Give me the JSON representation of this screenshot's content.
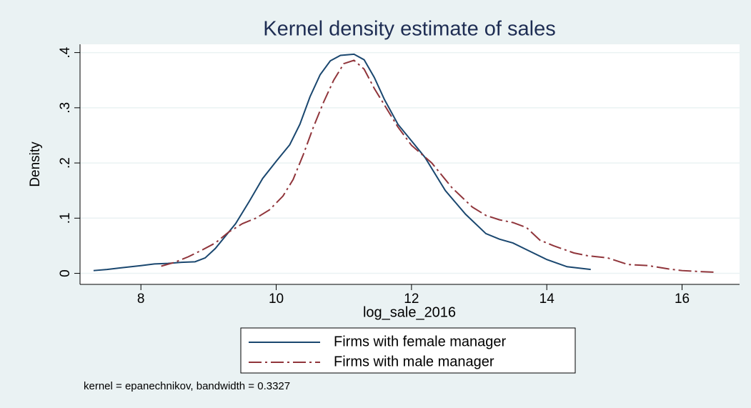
{
  "chart_data": {
    "type": "line",
    "title": "Kernel density estimate of sales",
    "x_label": "log_sale_2016",
    "y_label": "Density",
    "note": "kernel = epanechnikov, bandwidth = 0.3327",
    "xlim": [
      7.1,
      16.85
    ],
    "ylim": [
      -0.02,
      0.415
    ],
    "xticks": [
      8,
      10,
      12,
      14,
      16
    ],
    "yticks": [
      0,
      {
        "value": 0.1,
        "label": ".1"
      },
      {
        "value": 0.2,
        "label": ".2"
      },
      {
        "value": 0.3,
        "label": ".3"
      },
      {
        "value": 0.4,
        "label": ".4"
      }
    ],
    "grid": true,
    "legend": "bottom",
    "series": [
      {
        "name": "Firms with female manager",
        "color": "#1a476f",
        "style": "solid",
        "x": [
          7.3,
          7.5,
          7.7,
          8.0,
          8.2,
          8.4,
          8.6,
          8.8,
          8.95,
          9.1,
          9.4,
          9.6,
          9.8,
          10.0,
          10.2,
          10.35,
          10.5,
          10.65,
          10.8,
          10.95,
          11.15,
          11.3,
          11.45,
          11.6,
          11.8,
          12.0,
          12.2,
          12.5,
          12.8,
          13.1,
          13.3,
          13.5,
          13.7,
          14.0,
          14.3,
          14.65
        ],
        "values": [
          0.005,
          0.007,
          0.01,
          0.014,
          0.017,
          0.018,
          0.02,
          0.021,
          0.028,
          0.045,
          0.09,
          0.13,
          0.172,
          0.203,
          0.233,
          0.27,
          0.32,
          0.36,
          0.385,
          0.395,
          0.397,
          0.387,
          0.355,
          0.315,
          0.27,
          0.24,
          0.21,
          0.15,
          0.107,
          0.072,
          0.062,
          0.055,
          0.043,
          0.025,
          0.012,
          0.007
        ]
      },
      {
        "name": "Firms with male manager",
        "color": "#90353b",
        "style": "dashdot",
        "x": [
          8.3,
          8.5,
          8.7,
          8.9,
          9.1,
          9.3,
          9.5,
          9.7,
          9.9,
          10.1,
          10.25,
          10.4,
          10.55,
          10.7,
          10.85,
          11.0,
          11.15,
          11.3,
          11.45,
          11.6,
          11.8,
          12.0,
          12.3,
          12.6,
          12.9,
          13.1,
          13.3,
          13.5,
          13.7,
          13.9,
          14.1,
          14.4,
          14.6,
          14.9,
          15.2,
          15.5,
          15.8,
          16.0,
          16.3,
          16.5
        ],
        "values": [
          0.013,
          0.02,
          0.03,
          0.042,
          0.055,
          0.075,
          0.09,
          0.1,
          0.115,
          0.14,
          0.17,
          0.215,
          0.265,
          0.31,
          0.35,
          0.38,
          0.386,
          0.37,
          0.335,
          0.305,
          0.265,
          0.232,
          0.2,
          0.155,
          0.12,
          0.105,
          0.097,
          0.092,
          0.083,
          0.06,
          0.05,
          0.037,
          0.032,
          0.028,
          0.016,
          0.014,
          0.008,
          0.005,
          0.003,
          0.002
        ]
      }
    ]
  }
}
